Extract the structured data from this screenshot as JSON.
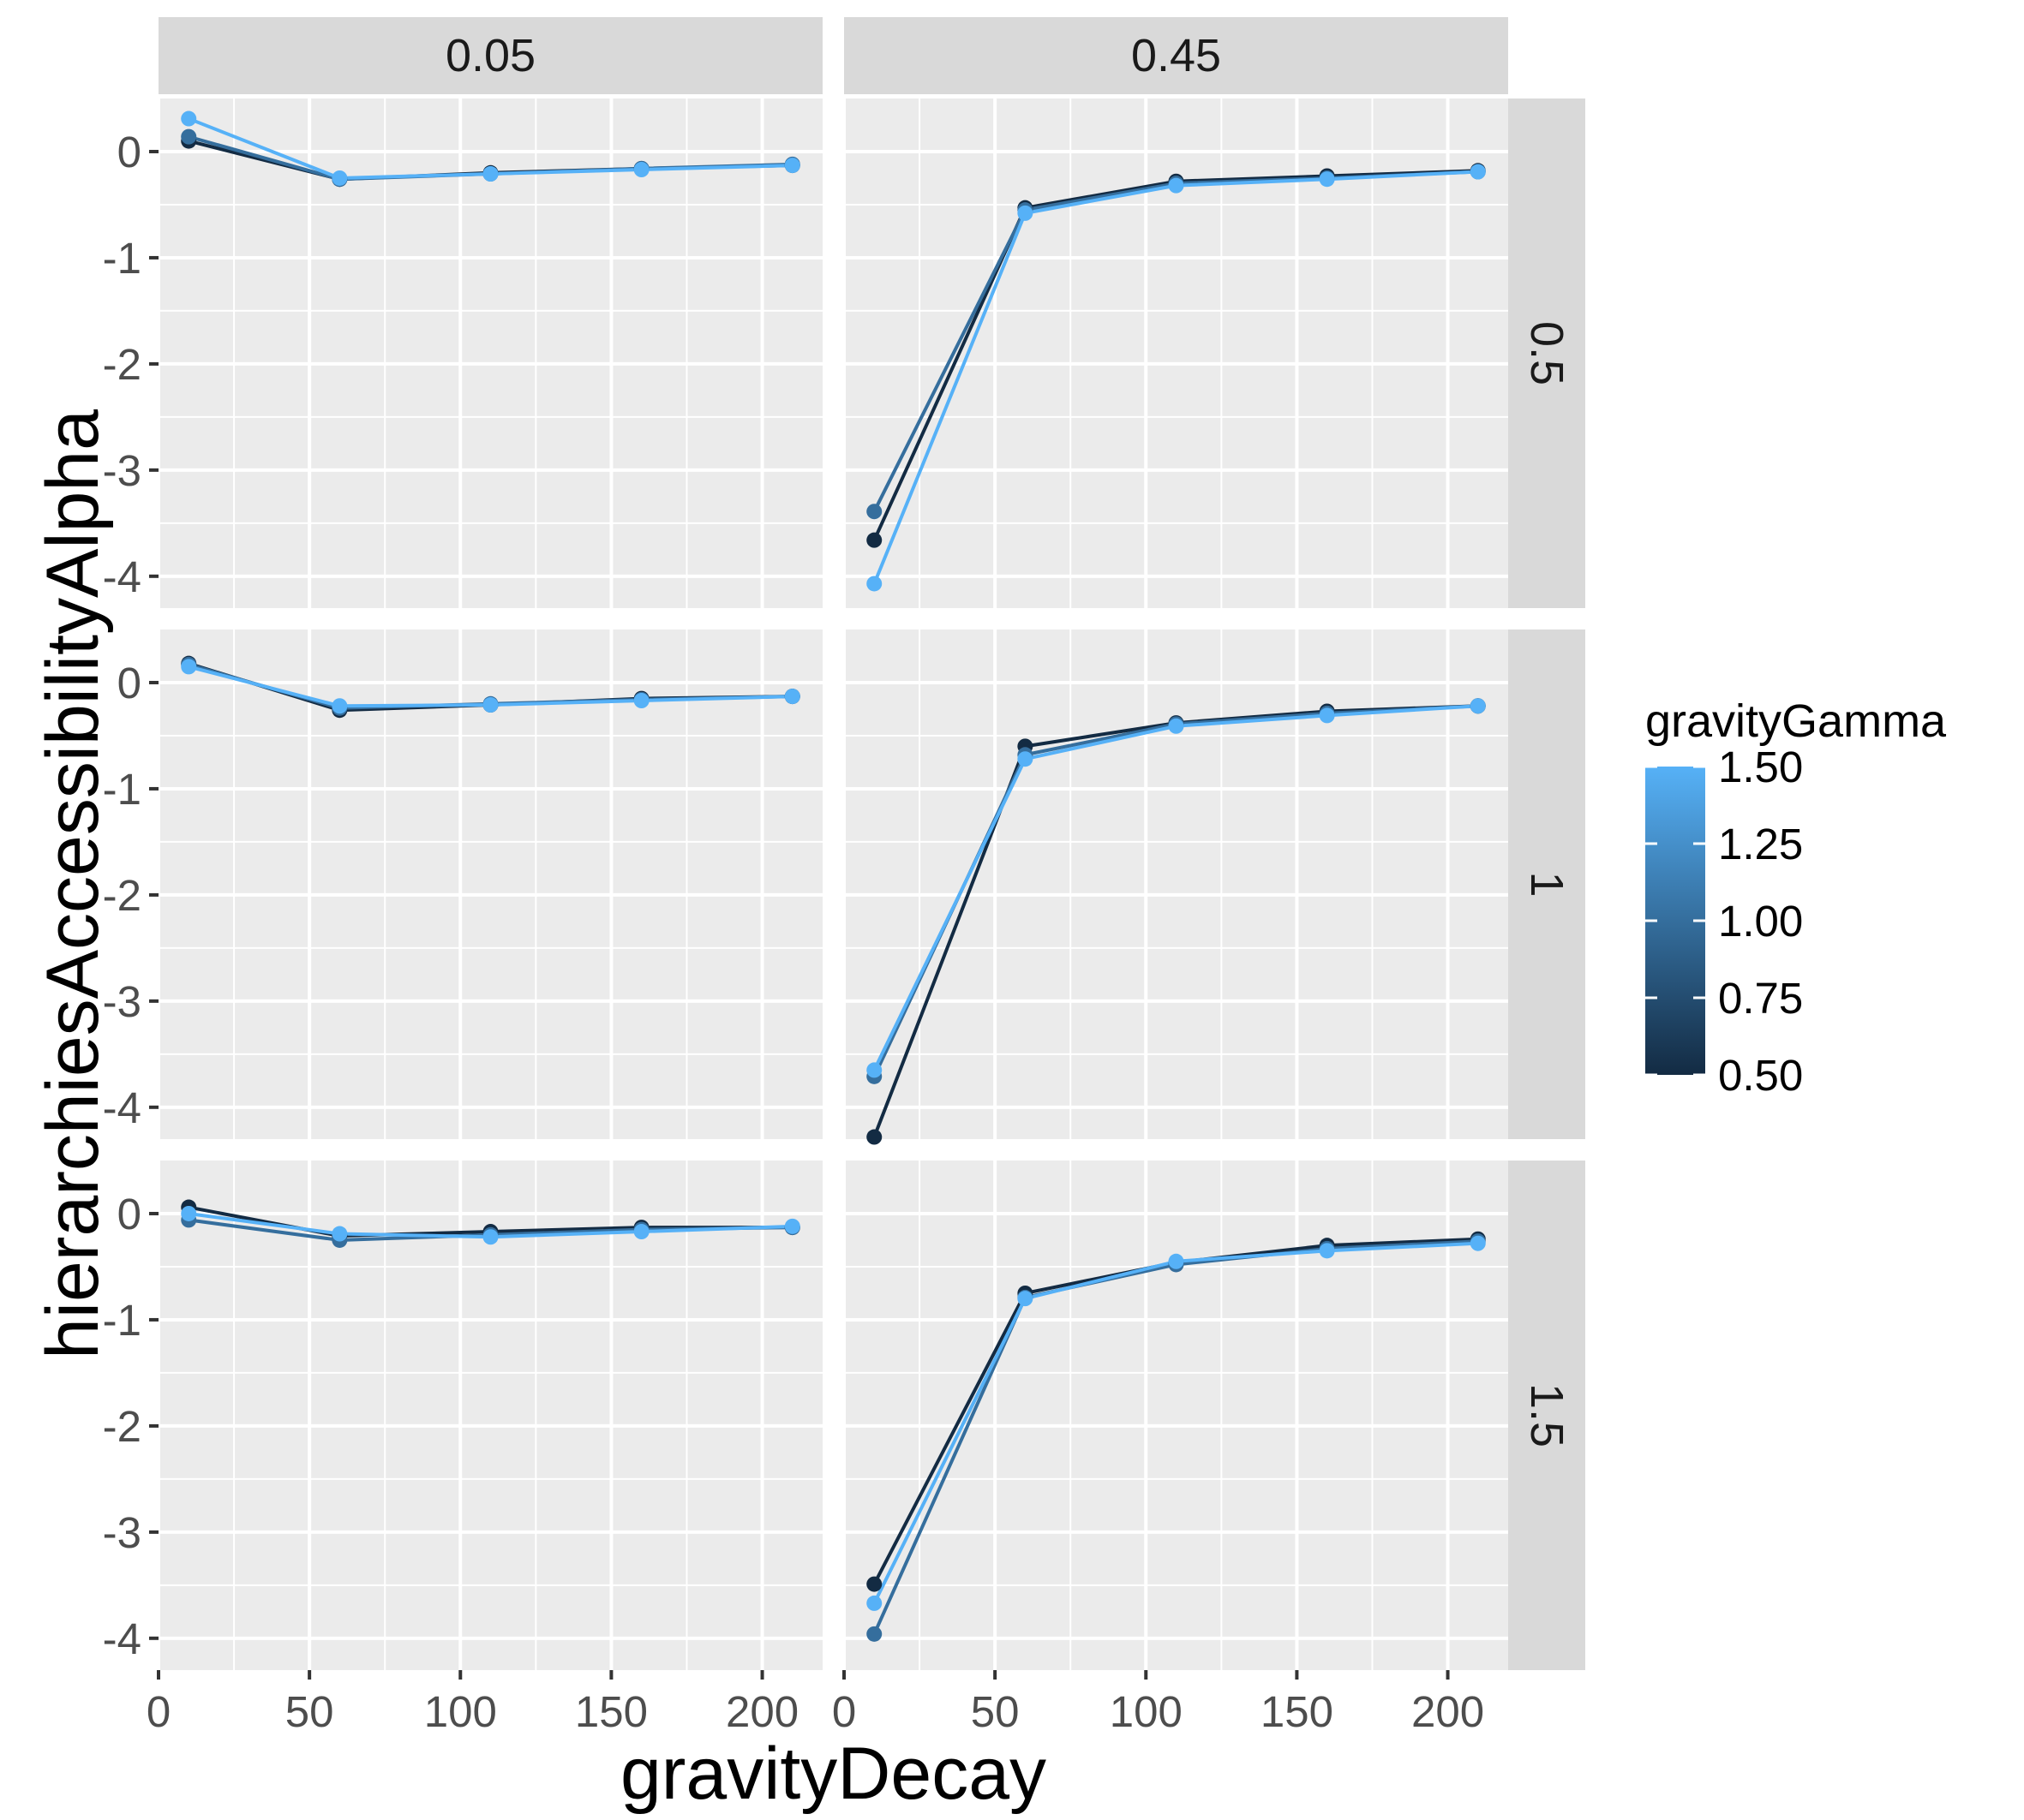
{
  "chart_data": {
    "type": "line",
    "facet_type": "grid",
    "xlabel": "gravityDecay",
    "ylabel": "hierarchiesAccessibilityAlpha",
    "xlim": [
      0,
      220
    ],
    "ylim": [
      -4.3,
      0.5
    ],
    "x_ticks": [
      0,
      50,
      100,
      150,
      200
    ],
    "x_tick_labels": [
      "0",
      "50",
      "100",
      "150",
      "200"
    ],
    "y_ticks": [
      0,
      -1,
      -2,
      -3,
      -4
    ],
    "y_tick_labels": [
      "0",
      "-1",
      "-2",
      "-3",
      "-4"
    ],
    "col_strips": [
      "0.05",
      "0.45"
    ],
    "row_strips": [
      "0.5",
      "1",
      "1.5"
    ],
    "grid": true,
    "legend": {
      "title": "gravityGamma",
      "type": "colorbar",
      "position": "right",
      "range": [
        0.5,
        1.5
      ],
      "breaks": [
        1.5,
        1.25,
        1.0,
        0.75,
        0.5
      ],
      "break_labels": [
        "1.50",
        "1.25",
        "1.00",
        "0.75",
        "0.50"
      ],
      "low_color": "#132B43",
      "high_color": "#56B1F7"
    },
    "x": [
      10,
      60,
      110,
      160,
      210
    ],
    "panels": [
      {
        "col": "0.05",
        "row": "0.5",
        "series": [
          {
            "gamma": 0.5,
            "values": [
              0.1,
              -0.26,
              -0.2,
              -0.16,
              -0.13
            ]
          },
          {
            "gamma": 1.0,
            "values": [
              0.14,
              -0.26,
              -0.21,
              -0.16,
              -0.12
            ]
          },
          {
            "gamma": 1.5,
            "values": [
              0.31,
              -0.25,
              -0.21,
              -0.17,
              -0.13
            ]
          }
        ]
      },
      {
        "col": "0.45",
        "row": "0.5",
        "series": [
          {
            "gamma": 0.5,
            "values": [
              -3.66,
              -0.53,
              -0.28,
              -0.23,
              -0.18
            ]
          },
          {
            "gamma": 1.0,
            "values": [
              -3.39,
              -0.55,
              -0.3,
              -0.25,
              -0.19
            ]
          },
          {
            "gamma": 1.5,
            "values": [
              -4.07,
              -0.58,
              -0.32,
              -0.26,
              -0.19
            ]
          }
        ]
      },
      {
        "col": "0.05",
        "row": "1",
        "series": [
          {
            "gamma": 0.5,
            "values": [
              0.18,
              -0.26,
              -0.21,
              -0.15,
              -0.13
            ]
          },
          {
            "gamma": 1.0,
            "values": [
              0.17,
              -0.24,
              -0.2,
              -0.16,
              -0.13
            ]
          },
          {
            "gamma": 1.5,
            "values": [
              0.15,
              -0.22,
              -0.21,
              -0.17,
              -0.13
            ]
          }
        ]
      },
      {
        "col": "0.45",
        "row": "1",
        "series": [
          {
            "gamma": 0.5,
            "values": [
              -4.28,
              -0.6,
              -0.38,
              -0.27,
              -0.22
            ]
          },
          {
            "gamma": 1.0,
            "values": [
              -3.71,
              -0.68,
              -0.39,
              -0.29,
              -0.22
            ]
          },
          {
            "gamma": 1.5,
            "values": [
              -3.65,
              -0.72,
              -0.41,
              -0.31,
              -0.22
            ]
          }
        ]
      },
      {
        "col": "0.05",
        "row": "1.5",
        "series": [
          {
            "gamma": 0.5,
            "values": [
              0.06,
              -0.21,
              -0.17,
              -0.13,
              -0.13
            ]
          },
          {
            "gamma": 1.0,
            "values": [
              -0.06,
              -0.25,
              -0.2,
              -0.15,
              -0.13
            ]
          },
          {
            "gamma": 1.5,
            "values": [
              0.0,
              -0.19,
              -0.22,
              -0.17,
              -0.12
            ]
          }
        ]
      },
      {
        "col": "0.45",
        "row": "1.5",
        "series": [
          {
            "gamma": 0.5,
            "values": [
              -3.49,
              -0.75,
              -0.46,
              -0.3,
              -0.24
            ]
          },
          {
            "gamma": 1.0,
            "values": [
              -3.96,
              -0.79,
              -0.48,
              -0.33,
              -0.26
            ]
          },
          {
            "gamma": 1.5,
            "values": [
              -3.67,
              -0.8,
              -0.45,
              -0.35,
              -0.28
            ]
          }
        ]
      }
    ]
  }
}
